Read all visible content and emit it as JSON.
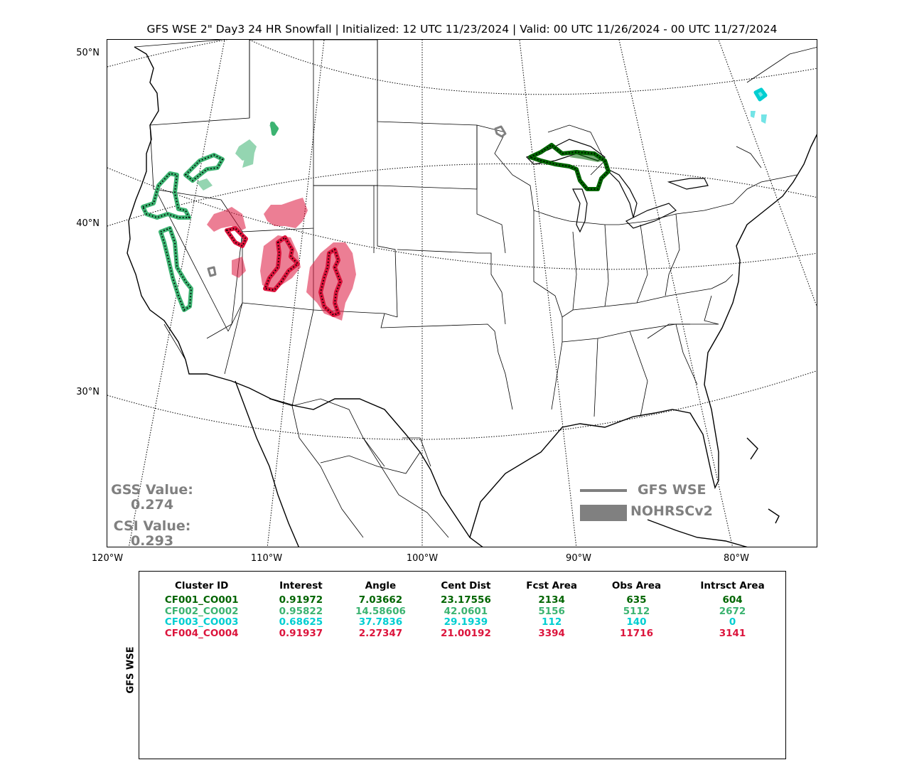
{
  "title": "GFS WSE 2\" Day3 24 HR Snowfall | Initialized: 12 UTC 11/23/2024 | Valid: 00 UTC 11/26/2024 - 00 UTC 11/27/2024",
  "map": {
    "lat_labels": [
      "50°N",
      "40°N",
      "30°N"
    ],
    "lon_labels": [
      "120°W",
      "110°W",
      "100°W",
      "90°W",
      "80°W"
    ],
    "colors": {
      "cluster1": "#006400",
      "cluster2": "#3CB371",
      "cluster3": "#00CED1",
      "cluster4": "#DC143C",
      "unmatched": "#808080"
    }
  },
  "scores": {
    "gss_label": "GSS Value:",
    "gss_value": "0.274",
    "csi_label": "CSI Value:",
    "csi_value": "0.293"
  },
  "legend": {
    "forecast_label": "GFS WSE",
    "observed_label": "NOHRSCv2"
  },
  "stats": {
    "side_label": "GFS WSE",
    "headers": [
      "Cluster ID",
      "Interest",
      "Angle",
      "Cent Dist",
      "Fcst Area",
      "Obs Area",
      "Intrsct Area"
    ],
    "rows": [
      {
        "color": "#006400",
        "cells": [
          "CF001_CO001",
          "0.91972",
          "7.03662",
          "23.17556",
          "2134",
          "635",
          "604"
        ]
      },
      {
        "color": "#3CB371",
        "cells": [
          "CF002_CO002",
          "0.95822",
          "14.58606",
          "42.0601",
          "5156",
          "5112",
          "2672"
        ]
      },
      {
        "color": "#00CED1",
        "cells": [
          "CF003_CO003",
          "0.68625",
          "37.7836",
          "29.1939",
          "112",
          "140",
          "0"
        ]
      },
      {
        "color": "#DC143C",
        "cells": [
          "CF004_CO004",
          "0.91937",
          "2.27347",
          "21.00192",
          "3394",
          "11716",
          "3141"
        ]
      }
    ]
  }
}
